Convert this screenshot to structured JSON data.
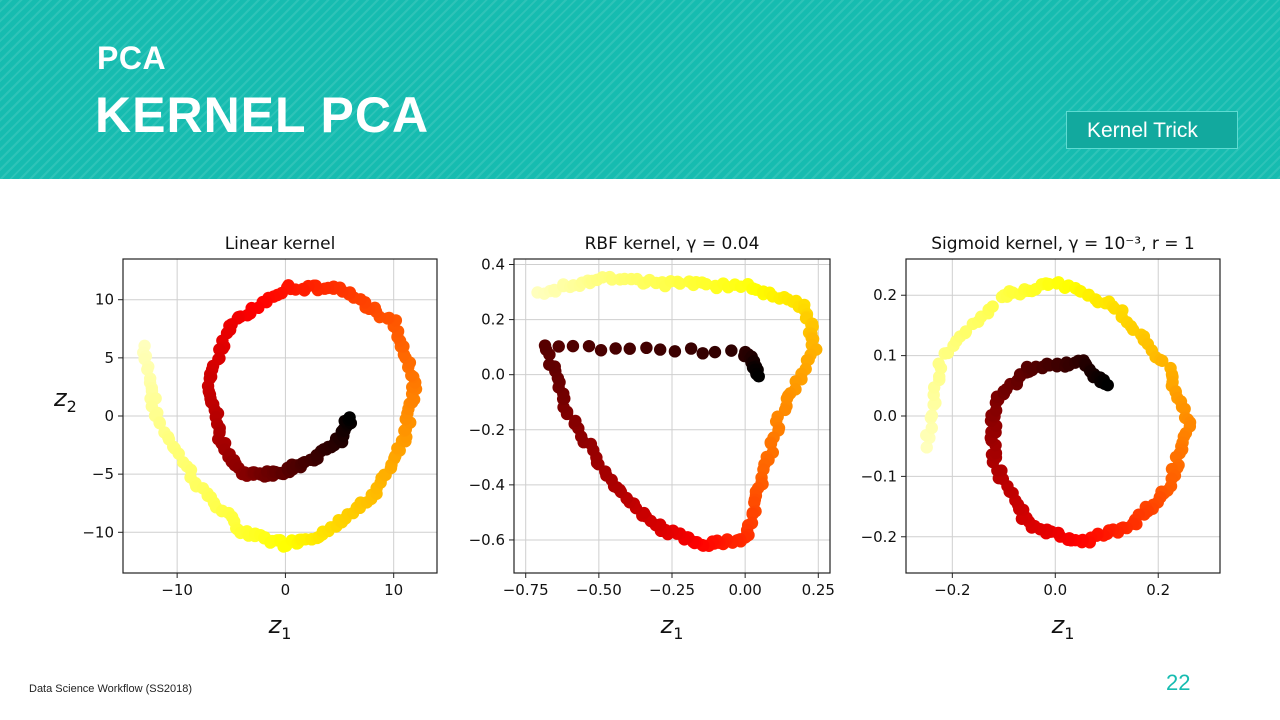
{
  "slide": {
    "supertitle": "PCA",
    "title": "KERNEL PCA",
    "badge": "Kernel Trick",
    "footer": "Data Science Workflow (SS2018)",
    "page_number": "22",
    "colors": {
      "header": "#16bcb0",
      "accent": "#16bcb0"
    }
  },
  "chart_data": [
    {
      "type": "scatter",
      "title": "Linear kernel",
      "xlabel": "z1",
      "ylabel": "z2",
      "xlim": [
        -15,
        14
      ],
      "ylim": [
        -13.5,
        13.5
      ],
      "xticks": [
        -10,
        0,
        10
      ],
      "xtick_labels": [
        "−10",
        "0",
        "10"
      ],
      "yticks": [
        10,
        5,
        0,
        -5,
        -10
      ],
      "ytick_labels": [
        "10",
        "5",
        "0",
        "−5",
        "−10"
      ],
      "grid": true,
      "colormap": "hot",
      "shape": "swiss roll projected linearly: spiral from (−13,6) down to (0,−12), around through (12,−5),(10,10),(0,11),(−7,3),(−3,−3) to (6,0)",
      "approx_points": [
        [
          -13,
          6
        ],
        [
          -12,
          0
        ],
        [
          -8,
          -6
        ],
        [
          -4,
          -10
        ],
        [
          0,
          -11
        ],
        [
          4,
          -10
        ],
        [
          8,
          -7
        ],
        [
          11,
          -2
        ],
        [
          12,
          3
        ],
        [
          10,
          8
        ],
        [
          5,
          11
        ],
        [
          0,
          11
        ],
        [
          -5,
          8
        ],
        [
          -7,
          3
        ],
        [
          -6,
          -2
        ],
        [
          -4,
          -5
        ],
        [
          -1,
          -5
        ],
        [
          2,
          -4
        ],
        [
          5,
          -2
        ],
        [
          6,
          0
        ]
      ]
    },
    {
      "type": "scatter",
      "title": "RBF kernel, γ = 0.04",
      "xlabel": "z1",
      "ylabel": "",
      "xlim": [
        -0.79,
        0.29
      ],
      "ylim": [
        -0.72,
        0.42
      ],
      "xticks": [
        -0.75,
        -0.5,
        -0.25,
        0.0,
        0.25
      ],
      "xtick_labels": [
        "−0.75",
        "−0.50",
        "−0.25",
        "0.00",
        "0.25"
      ],
      "yticks": [
        0.4,
        0.2,
        0.0,
        -0.2,
        -0.4,
        -0.6
      ],
      "ytick_labels": [
        "0.4",
        "0.2",
        "0.0",
        "−0.2",
        "−0.4",
        "−0.6"
      ],
      "grid": true,
      "colormap": "hot",
      "shape": "triangular outline with apices near (−0.7,0.3),(0.25,0.2),(−0.05,−0.65); bright yellow cluster near (0.0,0.05)",
      "approx_points": [
        [
          -0.7,
          0.3
        ],
        [
          -0.5,
          0.35
        ],
        [
          -0.25,
          0.33
        ],
        [
          0.0,
          0.32
        ],
        [
          0.2,
          0.25
        ],
        [
          0.24,
          0.1
        ],
        [
          0.12,
          -0.15
        ],
        [
          0.05,
          -0.4
        ],
        [
          0.0,
          -0.6
        ],
        [
          -0.15,
          -0.62
        ],
        [
          -0.3,
          -0.55
        ],
        [
          -0.45,
          -0.4
        ],
        [
          -0.6,
          -0.15
        ],
        [
          -0.68,
          0.1
        ],
        [
          0.0,
          0.08
        ],
        [
          0.05,
          0.0
        ]
      ]
    },
    {
      "type": "scatter",
      "title": "Sigmoid kernel, γ = 10⁻³, r = 1",
      "xlabel": "z1",
      "ylabel": "",
      "xlim": [
        -0.29,
        0.32
      ],
      "ylim": [
        -0.26,
        0.26
      ],
      "xticks": [
        -0.2,
        0.0,
        0.2
      ],
      "xtick_labels": [
        "−0.2",
        "0.0",
        "0.2"
      ],
      "yticks": [
        0.2,
        0.1,
        0.0,
        -0.1,
        -0.2
      ],
      "ytick_labels": [
        "0.2",
        "0.1",
        "0.0",
        "−0.1",
        "−0.2"
      ],
      "grid": true,
      "colormap": "hot",
      "shape": "outer yellow arc from (−0.25,−0.05) over (0.0,0.22) to (0.25,−0.05); inner ring centered near (0.05,−0.06); dark blob near (0.08,0.06)",
      "approx_points": [
        [
          -0.25,
          -0.05
        ],
        [
          -0.22,
          0.1
        ],
        [
          -0.1,
          0.2
        ],
        [
          0.0,
          0.22
        ],
        [
          0.12,
          0.18
        ],
        [
          0.22,
          0.08
        ],
        [
          0.26,
          -0.02
        ],
        [
          0.22,
          -0.12
        ],
        [
          0.15,
          -0.18
        ],
        [
          0.05,
          -0.21
        ],
        [
          -0.05,
          -0.18
        ],
        [
          -0.12,
          -0.08
        ],
        [
          -0.12,
          0.02
        ],
        [
          -0.05,
          0.08
        ],
        [
          0.05,
          0.09
        ],
        [
          0.1,
          0.05
        ]
      ]
    }
  ]
}
